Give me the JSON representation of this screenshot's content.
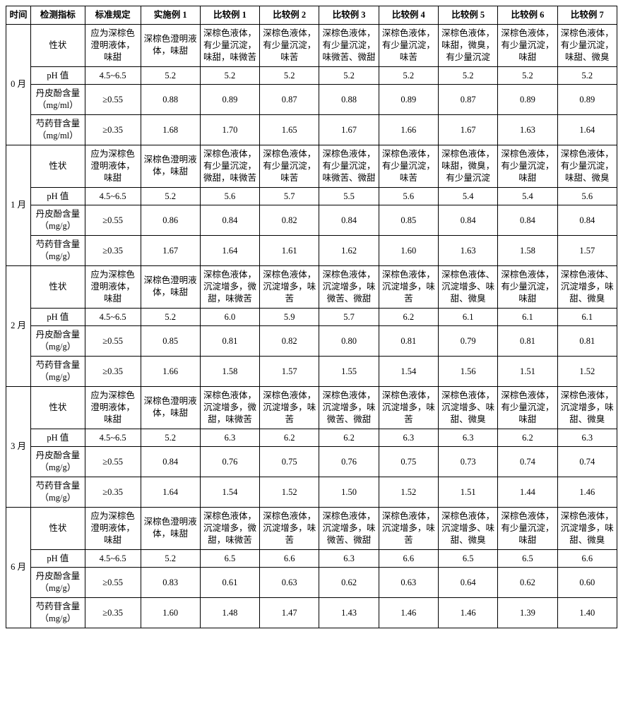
{
  "columns": [
    "时间",
    "检测指标",
    "标准规定",
    "实施例 1",
    "比较例 1",
    "比较例 2",
    "比较例 3",
    "比较例 4",
    "比较例 5",
    "比较例 6",
    "比较例 7"
  ],
  "indicators": {
    "xz": "性状",
    "ph": "pH 值",
    "dp_ml": "丹皮酚含量（mg/ml）",
    "sy_ml": "芍药苷含量（mg/ml）",
    "dp_g": "丹皮酚含量（mg/g）",
    "sy_g": "芍药苷含量（mg/g）"
  },
  "standards": {
    "xz": "应为深棕色澄明液体，味甜",
    "ph": "4.5~6.5",
    "dp": "≥0.55",
    "sy": "≥0.35"
  },
  "periods": [
    {
      "label": "0 月",
      "rows": [
        {
          "ind": "xz",
          "std": "xz",
          "v": [
            "深棕色澄明液体，味甜",
            "深棕色液体，有少量沉淀，味甜，味微苦",
            "深棕色液体，有少量沉淀，味苦",
            "深棕色液体，有少量沉淀，味微苦、微甜",
            "深棕色液体，有少量沉淀，味苦",
            "深棕色液体，味甜，微臭，有少量沉淀",
            "深棕色液体，有少量沉淀，味甜",
            "深棕色液体，有少量沉淀，味甜、微臭"
          ]
        },
        {
          "ind": "ph",
          "std": "ph",
          "v": [
            "5.2",
            "5.2",
            "5.2",
            "5.2",
            "5.2",
            "5.2",
            "5.2",
            "5.2"
          ]
        },
        {
          "ind": "dp_ml",
          "std": "dp",
          "v": [
            "0.88",
            "0.89",
            "0.87",
            "0.88",
            "0.89",
            "0.87",
            "0.89",
            "0.89"
          ]
        },
        {
          "ind": "sy_ml",
          "std": "sy",
          "v": [
            "1.68",
            "1.70",
            "1.65",
            "1.67",
            "1.66",
            "1.67",
            "1.63",
            "1.64"
          ]
        }
      ]
    },
    {
      "label": "1 月",
      "rows": [
        {
          "ind": "xz",
          "std": "xz",
          "v": [
            "深棕色澄明液体，味甜",
            "深棕色液体，有少量沉淀，微甜，味微苦",
            "深棕色液体，有少量沉淀，味苦",
            "深棕色液体，有少量沉淀，味微苦、微甜",
            "深棕色液体，有少量沉淀，味苦",
            "深棕色液体，味甜，微臭，有少量沉淀",
            "深棕色液体，有少量沉淀，味甜",
            "深棕色液体，有少量沉淀，味甜、微臭"
          ]
        },
        {
          "ind": "ph",
          "std": "ph",
          "v": [
            "5.2",
            "5.6",
            "5.7",
            "5.5",
            "5.6",
            "5.4",
            "5.4",
            "5.6"
          ]
        },
        {
          "ind": "dp_g",
          "std": "dp",
          "v": [
            "0.86",
            "0.84",
            "0.82",
            "0.84",
            "0.85",
            "0.84",
            "0.84",
            "0.84"
          ]
        },
        {
          "ind": "sy_g",
          "std": "sy",
          "v": [
            "1.67",
            "1.64",
            "1.61",
            "1.62",
            "1.60",
            "1.63",
            "1.58",
            "1.57"
          ]
        }
      ]
    },
    {
      "label": "2 月",
      "rows": [
        {
          "ind": "xz",
          "std": "xz",
          "v": [
            "深棕色澄明液体，味甜",
            "深棕色液体，沉淀增多，微甜，味微苦",
            "深棕色液体，沉淀增多，味苦",
            "深棕色液体，沉淀增多，味微苦、微甜",
            "深棕色液体，沉淀增多，味苦",
            "深棕色液体、沉淀增多、味甜、微臭",
            "深棕色液体，有少量沉淀，味甜",
            "深棕色液体、沉淀增多，味甜、微臭"
          ]
        },
        {
          "ind": "ph",
          "std": "ph",
          "v": [
            "5.2",
            "6.0",
            "5.9",
            "5.7",
            "6.2",
            "6.1",
            "6.1",
            "6.1"
          ]
        },
        {
          "ind": "dp_g",
          "std": "dp",
          "v": [
            "0.85",
            "0.81",
            "0.82",
            "0.80",
            "0.81",
            "0.79",
            "0.81",
            "0.81"
          ]
        },
        {
          "ind": "sy_g",
          "std": "sy",
          "v": [
            "1.66",
            "1.58",
            "1.57",
            "1.55",
            "1.54",
            "1.56",
            "1.51",
            "1.52"
          ]
        }
      ]
    },
    {
      "label": "3 月",
      "rows": [
        {
          "ind": "xz",
          "std": "xz",
          "v": [
            "深棕色澄明液体，味甜",
            "深棕色液体，沉淀增多，微甜，味微苦",
            "深棕色液体，沉淀增多，味苦",
            "深棕色液体，沉淀增多，味微苦、微甜",
            "深棕色液体，沉淀增多，味苦",
            "深棕色液体，沉淀增多、味甜、微臭",
            "深棕色液体，有少量沉淀，味甜",
            "深棕色液体，沉淀增多，味甜、微臭"
          ]
        },
        {
          "ind": "ph",
          "std": "ph",
          "v": [
            "5.2",
            "6.3",
            "6.2",
            "6.2",
            "6.3",
            "6.3",
            "6.2",
            "6.3"
          ]
        },
        {
          "ind": "dp_g",
          "std": "dp",
          "v": [
            "0.84",
            "0.76",
            "0.75",
            "0.76",
            "0.75",
            "0.73",
            "0.74",
            "0.74"
          ]
        },
        {
          "ind": "sy_g",
          "std": "sy",
          "v": [
            "1.64",
            "1.54",
            "1.52",
            "1.50",
            "1.52",
            "1.51",
            "1.44",
            "1.46"
          ]
        }
      ]
    },
    {
      "label": "6 月",
      "rows": [
        {
          "ind": "xz",
          "std": "xz",
          "v": [
            "深棕色澄明液体，味甜",
            "深棕色液体，沉淀增多，微甜，味微苦",
            "深棕色液体，沉淀增多，味苦",
            "深棕色液体，沉淀增多，味微苦、微甜",
            "深棕色液体，沉淀增多，味苦",
            "深棕色液体，沉淀增多、味甜、微臭",
            "深棕色液体，有少量沉淀，味甜",
            "深棕色液体，沉淀增多，味甜、微臭"
          ]
        },
        {
          "ind": "ph",
          "std": "ph",
          "v": [
            "5.2",
            "6.5",
            "6.6",
            "6.3",
            "6.6",
            "6.5",
            "6.5",
            "6.6"
          ]
        },
        {
          "ind": "dp_g",
          "std": "dp",
          "v": [
            "0.83",
            "0.61",
            "0.63",
            "0.62",
            "0.63",
            "0.64",
            "0.62",
            "0.60"
          ]
        },
        {
          "ind": "sy_g",
          "std": "sy",
          "v": [
            "1.60",
            "1.48",
            "1.47",
            "1.43",
            "1.46",
            "1.46",
            "1.39",
            "1.40"
          ]
        }
      ]
    }
  ]
}
